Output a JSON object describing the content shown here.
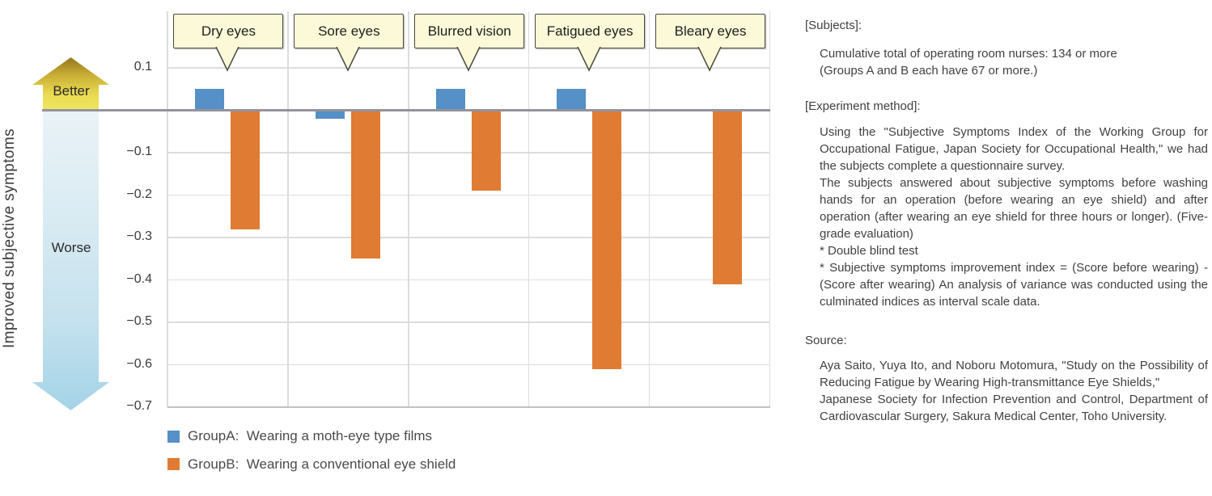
{
  "chart_data": {
    "type": "bar",
    "title": "",
    "categories": [
      "Dry eyes",
      "Sore eyes",
      "Blurred vision",
      "Fatigued eyes",
      "Bleary eyes"
    ],
    "series": [
      {
        "name": "GroupA",
        "legend_label": "GroupA:  Wearing a moth-eye type films",
        "color": "#5590c6",
        "values": [
          0.05,
          -0.02,
          0.05,
          0.05,
          0
        ]
      },
      {
        "name": "GroupB",
        "legend_label": "GroupB:  Wearing a conventional eye shield",
        "color": "#e07b33",
        "values": [
          -0.28,
          -0.35,
          -0.19,
          -0.61,
          -0.41
        ]
      }
    ],
    "ylabel": "Improved subjective symptoms",
    "ylim": [
      -0.7,
      0.156
    ],
    "yticks_labeled": [
      0.1,
      -0.1,
      -0.2,
      -0.3,
      -0.4,
      -0.5,
      -0.6,
      -0.7
    ],
    "zero_line": true,
    "grid": "on",
    "legend_position": "bottom-left",
    "annotations": {
      "better": "Better",
      "worse": "Worse"
    },
    "colors": {
      "gridline": "#dcdcdc",
      "bottom_gridline": "#c2c2c2",
      "zero_line": "#94929d",
      "callout_bg": "#fcf9d9",
      "callout_border": "#4a483e"
    }
  },
  "info": {
    "subjects_heading": "[Subjects]:",
    "subjects_lines": [
      "Cumulative total of operating room nurses: 134 or more",
      "(Groups A and B each have 67 or more.)"
    ],
    "method_heading": "[Experiment method]:",
    "method_paragraphs": [
      "Using the \"Subjective Symptoms Index of the Working Group for Occupational Fatigue, Japan Society for Occupational Health,\" we had the subjects complete a questionnaire survey.",
      "The subjects answered about subjective symptoms before washing hands for an operation (before wearing an eye shield) and after operation (after wearing an eye shield for three hours or longer). (Five-grade evaluation)",
      "* Double blind test",
      "* Subjective symptoms improvement index = (Score before wearing) - (Score after wearing) An analysis of variance was conducted using the culminated indices as interval scale data."
    ],
    "source_heading": "Source:",
    "source_paragraphs": [
      "Aya Saito, Yuya Ito, and Noboru Motomura, \"Study on the Possibility of Reducing Fatigue by Wearing High-transmittance Eye Shields,\"",
      "Japanese Society for Infection Prevention and Control, Department of Cardiovascular Surgery, Sakura Medical Center, Toho University."
    ]
  }
}
